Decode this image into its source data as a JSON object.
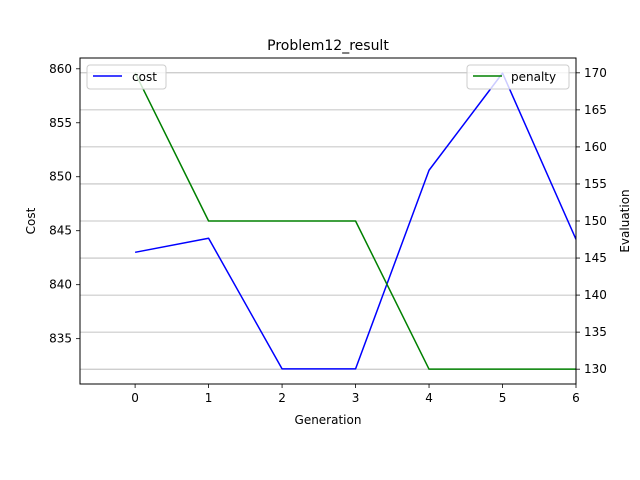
{
  "chart_data": {
    "type": "line",
    "title": "Problem12_result",
    "xlabel": "Generation",
    "ylabel_left": "Cost",
    "ylabel_right": "Evaluation",
    "x": [
      0,
      1,
      2,
      3,
      4,
      5,
      6
    ],
    "xlim": [
      -0.75,
      6
    ],
    "xticks": [
      0,
      1,
      2,
      3,
      4,
      5,
      6
    ],
    "ylim_left": [
      830.8,
      861.0
    ],
    "yticks_left": [
      835,
      840,
      845,
      850,
      855,
      860
    ],
    "ylim_right": [
      128.0,
      172.0
    ],
    "yticks_right": [
      130,
      135,
      140,
      145,
      150,
      155,
      160,
      165,
      170
    ],
    "grid": "horizontal, right axis",
    "series": [
      {
        "name": "cost",
        "axis": "left",
        "color": "#0000ff",
        "values": [
          843.0,
          844.3,
          832.2,
          832.2,
          850.6,
          859.6,
          844.2
        ]
      },
      {
        "name": "penalty",
        "axis": "right",
        "color": "#008000",
        "values": [
          170,
          150,
          150,
          150,
          130,
          130,
          130
        ]
      }
    ],
    "legend_left": {
      "placement": "top-left",
      "label": "cost"
    },
    "legend_right": {
      "placement": "top-right",
      "label": "penalty"
    }
  }
}
